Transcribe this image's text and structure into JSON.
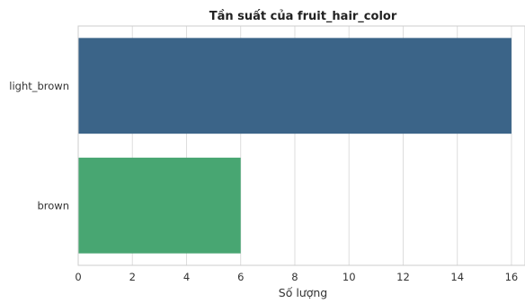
{
  "chart_data": {
    "type": "bar",
    "orientation": "horizontal",
    "title": "Tần suất của fruit_hair_color",
    "xlabel": "Số lượng",
    "ylabel": "",
    "categories": [
      "light_brown",
      "brown"
    ],
    "values": [
      16,
      6
    ],
    "colors": [
      "#3b6488",
      "#48a672"
    ],
    "xlim": [
      0,
      16.5
    ],
    "xticks": [
      0,
      2,
      4,
      6,
      8,
      10,
      12,
      14,
      16
    ],
    "grid": true
  }
}
